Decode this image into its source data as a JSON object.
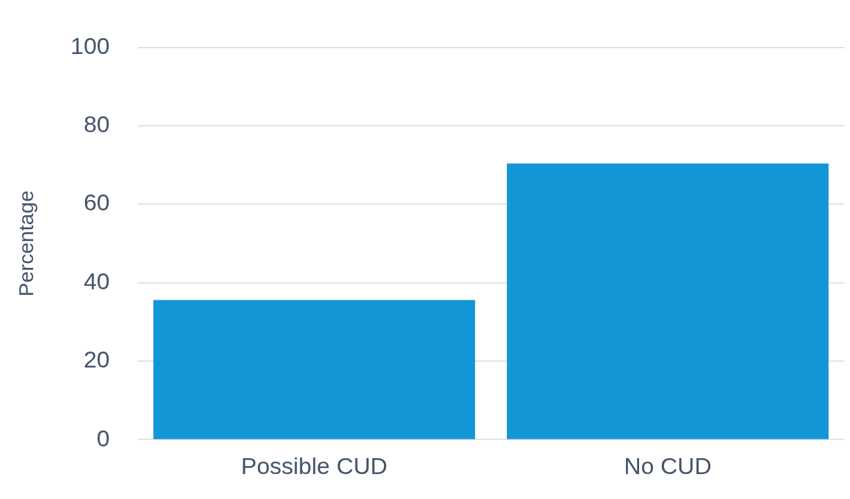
{
  "chart_data": {
    "type": "bar",
    "ylabel": "Percentage",
    "categories": [
      "Possible CUD",
      "No CUD"
    ],
    "values": [
      35.6,
      70.4
    ],
    "color": "#1396d6",
    "ylim": [
      0,
      100
    ],
    "yticks": [
      0,
      20,
      40,
      60,
      80,
      100
    ],
    "grid": "y"
  }
}
